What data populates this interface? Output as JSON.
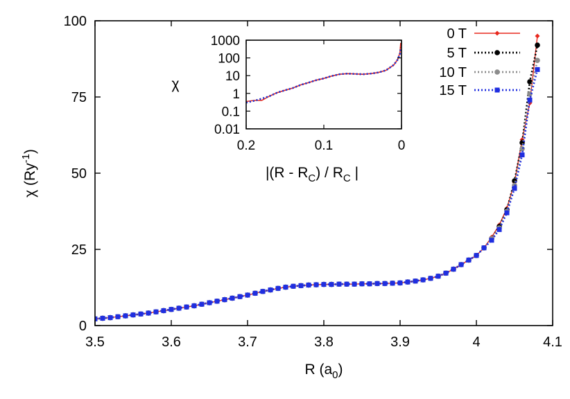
{
  "chart_data": [
    {
      "type": "line",
      "xlabel": "R (a",
      "xlabel_sub": "0",
      "xlabel_end": ")",
      "ylabel": "χ (Ry",
      "ylabel_sup": "-1",
      "ylabel_end": ")",
      "xlim": [
        3.5,
        4.1
      ],
      "ylim": [
        0,
        100
      ],
      "xticks": [
        3.5,
        3.6,
        3.7,
        3.8,
        3.9,
        4.0,
        4.1
      ],
      "xtick_labels": [
        "3.5",
        "3.6",
        "3.7",
        "3.8",
        "3.9",
        "4",
        "4.1"
      ],
      "yticks": [
        0,
        25,
        50,
        75,
        100
      ],
      "ytick_labels": [
        "0",
        "25",
        "50",
        "75",
        "100"
      ],
      "legend_position": "top-right",
      "grid": false,
      "x": [
        3.5,
        3.51,
        3.52,
        3.53,
        3.54,
        3.55,
        3.56,
        3.57,
        3.58,
        3.59,
        3.6,
        3.61,
        3.62,
        3.63,
        3.64,
        3.65,
        3.66,
        3.67,
        3.68,
        3.69,
        3.7,
        3.71,
        3.72,
        3.73,
        3.74,
        3.75,
        3.76,
        3.77,
        3.78,
        3.79,
        3.8,
        3.81,
        3.82,
        3.83,
        3.84,
        3.85,
        3.86,
        3.87,
        3.88,
        3.89,
        3.9,
        3.91,
        3.92,
        3.93,
        3.94,
        3.95,
        3.96,
        3.97,
        3.98,
        3.99,
        4.0,
        4.01,
        4.02,
        4.03,
        4.04,
        4.05,
        4.06,
        4.07,
        4.08
      ],
      "series": [
        {
          "name": "0 T",
          "color": "#e8281e",
          "marker": "diamond",
          "dash": "solid",
          "values": [
            2.2,
            2.4,
            2.6,
            2.9,
            3.2,
            3.5,
            3.8,
            4.1,
            4.5,
            4.9,
            5.3,
            5.7,
            6.1,
            6.5,
            7.0,
            7.5,
            8.0,
            8.5,
            9.0,
            9.5,
            10.0,
            10.6,
            11.2,
            11.7,
            12.2,
            12.6,
            12.9,
            13.1,
            13.3,
            13.4,
            13.5,
            13.5,
            13.6,
            13.6,
            13.6,
            13.7,
            13.7,
            13.8,
            13.8,
            13.9,
            14.0,
            14.3,
            14.6,
            15.0,
            15.5,
            16.2,
            17.2,
            18.5,
            20.0,
            21.5,
            23.0,
            25.5,
            29.0,
            33.0,
            38.5,
            47.0,
            61.0,
            73.0,
            95.0
          ]
        },
        {
          "name": "5 T",
          "color": "#000000",
          "marker": "circle",
          "dash": "dotted",
          "values": [
            2.2,
            2.4,
            2.6,
            2.9,
            3.2,
            3.5,
            3.8,
            4.1,
            4.5,
            4.9,
            5.3,
            5.7,
            6.1,
            6.5,
            7.0,
            7.5,
            8.0,
            8.5,
            9.0,
            9.5,
            10.0,
            10.6,
            11.2,
            11.7,
            12.2,
            12.6,
            12.9,
            13.1,
            13.3,
            13.4,
            13.5,
            13.5,
            13.6,
            13.6,
            13.6,
            13.7,
            13.7,
            13.8,
            13.8,
            13.9,
            14.0,
            14.3,
            14.6,
            15.0,
            15.5,
            16.2,
            17.2,
            18.5,
            20.0,
            21.5,
            23.0,
            25.5,
            28.5,
            32.5,
            38.0,
            47.5,
            60.0,
            80.0,
            92.0
          ]
        },
        {
          "name": "10 T",
          "color": "#8c8c8c",
          "marker": "circle",
          "dash": "dotted",
          "values": [
            2.2,
            2.4,
            2.6,
            2.9,
            3.2,
            3.5,
            3.8,
            4.1,
            4.5,
            4.9,
            5.3,
            5.7,
            6.1,
            6.5,
            7.0,
            7.5,
            8.0,
            8.5,
            9.0,
            9.5,
            10.0,
            10.6,
            11.2,
            11.7,
            12.2,
            12.6,
            12.9,
            13.1,
            13.3,
            13.4,
            13.5,
            13.5,
            13.6,
            13.6,
            13.6,
            13.7,
            13.7,
            13.8,
            13.8,
            13.9,
            14.0,
            14.3,
            14.6,
            15.0,
            15.5,
            16.2,
            17.2,
            18.5,
            20.0,
            21.5,
            23.0,
            25.5,
            28.5,
            32.0,
            37.5,
            46.0,
            58.0,
            76.0,
            87.0
          ]
        },
        {
          "name": "15 T",
          "color": "#1f2ee0",
          "marker": "square",
          "dash": "dotted",
          "values": [
            2.2,
            2.4,
            2.6,
            2.9,
            3.2,
            3.5,
            3.8,
            4.1,
            4.5,
            4.9,
            5.3,
            5.7,
            6.1,
            6.5,
            7.0,
            7.5,
            8.0,
            8.5,
            9.0,
            9.5,
            10.0,
            10.6,
            11.2,
            11.7,
            12.2,
            12.6,
            12.9,
            13.1,
            13.3,
            13.4,
            13.5,
            13.5,
            13.6,
            13.6,
            13.6,
            13.7,
            13.7,
            13.8,
            13.8,
            13.9,
            14.0,
            14.3,
            14.6,
            15.0,
            15.5,
            16.2,
            17.2,
            18.5,
            20.0,
            21.5,
            23.0,
            25.5,
            28.0,
            31.5,
            37.0,
            45.0,
            56.0,
            74.0,
            84.0
          ]
        }
      ]
    },
    {
      "type": "line",
      "role": "inset",
      "xlabel": "|(R - R",
      "xlabel_sub1": "C",
      "xlabel_mid": ") / R",
      "xlabel_sub2": "C",
      "xlabel_end": " |",
      "ylabel": "χ",
      "x_reversed": true,
      "xlim": [
        0.2,
        0
      ],
      "y_scale": "log",
      "ylim": [
        0.01,
        1000
      ],
      "xticks": [
        0.2,
        0.1,
        0
      ],
      "xtick_labels": [
        "0.2",
        "0.1",
        "0"
      ],
      "yticks": [
        0.01,
        0.1,
        1,
        10,
        100,
        1000
      ],
      "ytick_labels": [
        "0.01",
        "0.1",
        "1",
        "10",
        "100",
        "1000"
      ],
      "x": [
        0.2,
        0.19,
        0.18,
        0.17,
        0.16,
        0.15,
        0.14,
        0.13,
        0.12,
        0.11,
        0.1,
        0.09,
        0.08,
        0.07,
        0.06,
        0.05,
        0.04,
        0.03,
        0.02,
        0.01,
        0.005,
        0.002,
        0.001
      ],
      "series": [
        {
          "name": "0 T",
          "color": "#e8281e",
          "values": [
            0.35,
            0.4,
            0.4,
            0.7,
            1.1,
            1.5,
            2.0,
            3.0,
            4.0,
            5.5,
            7.0,
            9.5,
            12.0,
            13.0,
            12.5,
            12.0,
            13.0,
            15.0,
            20.0,
            40.0,
            80.0,
            200.0,
            700.0
          ]
        },
        {
          "name": "5 T",
          "color": "#000000",
          "values": [
            0.3,
            0.38,
            0.5,
            0.7,
            1.1,
            1.5,
            2.0,
            3.0,
            4.0,
            5.5,
            7.0,
            9.5,
            12.0,
            13.0,
            12.5,
            12.0,
            13.0,
            15.0,
            20.0,
            40.0,
            80.0,
            180.0,
            400.0
          ]
        },
        {
          "name": "10 T",
          "color": "#8c8c8c",
          "values": [
            0.3,
            0.38,
            0.5,
            0.7,
            1.1,
            1.5,
            2.0,
            3.0,
            4.0,
            5.5,
            7.0,
            9.5,
            12.0,
            13.0,
            12.5,
            12.0,
            13.0,
            15.0,
            20.0,
            40.0,
            80.0,
            170.0,
            350.0
          ]
        },
        {
          "name": "15 T",
          "color": "#1f2ee0",
          "values": [
            0.3,
            0.38,
            0.5,
            0.7,
            1.1,
            1.5,
            2.0,
            3.0,
            4.0,
            5.5,
            7.0,
            9.5,
            12.0,
            13.0,
            12.5,
            12.0,
            13.0,
            15.0,
            20.0,
            40.0,
            80.0,
            160.0,
            300.0
          ]
        }
      ]
    }
  ]
}
